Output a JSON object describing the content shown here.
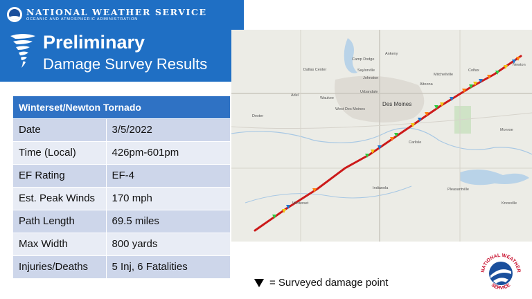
{
  "header": {
    "agency": "NATIONAL WEATHER SERVICE",
    "agency_sub": "OCEANIC AND ATMOSPHERIC ADMINISTRATION",
    "title_line1": "Preliminary",
    "title_line2": "Damage Survey Results"
  },
  "table": {
    "heading": "Winterset/Newton Tornado",
    "rows": [
      {
        "label": "Date",
        "value": "3/5/2022"
      },
      {
        "label": "Time (Local)",
        "value": "426pm-601pm"
      },
      {
        "label": "EF Rating",
        "value": "EF-4"
      },
      {
        "label": "Est. Peak Winds",
        "value": "170 mph"
      },
      {
        "label": "Path Length",
        "value": "69.5 miles"
      },
      {
        "label": "Max Width",
        "value": "800 yards"
      },
      {
        "label": "Injuries/Deaths",
        "value": "5 Inj, 6 Fatalities"
      }
    ]
  },
  "map": {
    "towns": [
      "Ankeny",
      "Camp Dodge",
      "Saylorville",
      "Johnston",
      "Dallas Center",
      "Urbandale",
      "Waukee",
      "Adel",
      "Altoona",
      "Mitchellville",
      "Des Moines",
      "West Des Moines",
      "Colfax",
      "Newton",
      "Monroe",
      "Carlisle",
      "Indianola",
      "Winterset",
      "Knoxville",
      "Pleasantville",
      "Dexter"
    ],
    "track_color": "#cc1a1a",
    "point_colors": [
      "#2ecc40",
      "#f1c40f",
      "#1f77d0",
      "#ff7f0e"
    ]
  },
  "legend": {
    "label": "= Surveyed damage point"
  },
  "seal": {
    "text_top": "NATIONAL WEATHER",
    "text_bottom": "SERVICE"
  },
  "colors": {
    "banner": "#1f6fc4",
    "table_header": "#2f72c4",
    "row_odd": "#cdd6ea",
    "row_even": "#e8ecf5"
  }
}
